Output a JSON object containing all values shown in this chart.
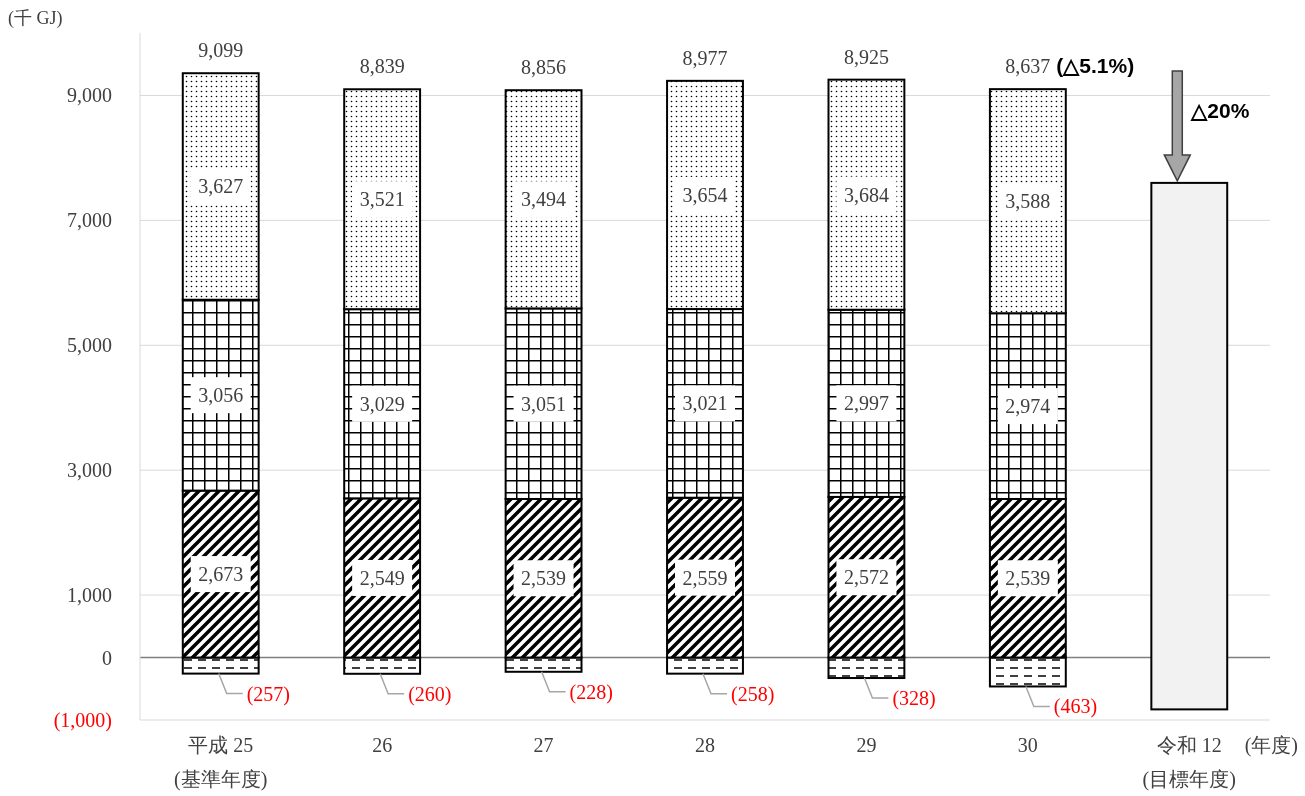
{
  "chart_data": {
    "type": "bar",
    "stacked": true,
    "categories": [
      "平成 25\n(基準年度)",
      "26",
      "27",
      "28",
      "29",
      "30",
      "令和 12\n(目標年度)"
    ],
    "ylabel": "(千 GJ)",
    "xlabel": "(年度)",
    "ylim": [
      -1000,
      10000
    ],
    "yticks": [
      {
        "value": -1000,
        "label": "(1,000)"
      },
      0,
      {
        "value": 1000,
        "label": "1,000"
      },
      {
        "value": 3000,
        "label": "3,000"
      },
      {
        "value": 5000,
        "label": "5,000"
      },
      {
        "value": 7000,
        "label": "7,000"
      },
      {
        "value": 9000,
        "label": "9,000"
      }
    ],
    "grid": "y",
    "ref_lines": [
      {
        "axis": "y",
        "value": 0,
        "color": "#808080"
      }
    ],
    "series": [
      {
        "color": "#000000",
        "values": [
          -257,
          -260,
          -228,
          -258,
          -328,
          -463,
          null
        ],
        "value_labels": [
          "(257)",
          "(260)",
          "(228)",
          "(258)",
          "(328)",
          "(463)",
          null
        ]
      },
      {
        "color": "#000000",
        "values": [
          2673,
          2549,
          2539,
          2559,
          2572,
          2539,
          null
        ],
        "value_labels": [
          "2,673",
          "2,549",
          "2,539",
          "2,559",
          "2,572",
          "2,539",
          null
        ]
      },
      {
        "color": "#000000",
        "values": [
          3056,
          3029,
          3051,
          3021,
          2997,
          2974,
          null
        ],
        "value_labels": [
          "3,056",
          "3,029",
          "3,051",
          "3,021",
          "2,997",
          "2,974",
          null
        ]
      },
      {
        "color": "#000000",
        "values": [
          3627,
          3521,
          3494,
          3654,
          3684,
          3588,
          null
        ],
        "value_labels": [
          "3,627",
          "3,521",
          "3,494",
          "3,654",
          "3,684",
          "3,588",
          null
        ]
      },
      {
        "color": "#f2f2f2",
        "values": [
          null,
          null,
          null,
          null,
          null,
          null,
          8430
        ],
        "base": [
          null,
          null,
          null,
          null,
          null,
          null,
          -830
        ]
      }
    ],
    "totals": [
      "9,099",
      "8,839",
      "8,856",
      "8,977",
      "8,925",
      "8,637",
      null
    ],
    "annotations": [
      "(△5.1%)",
      {
        "text": "△20%",
        "x": "令和 12\n(目標年度)",
        "y": 7600
      }
    ]
  }
}
